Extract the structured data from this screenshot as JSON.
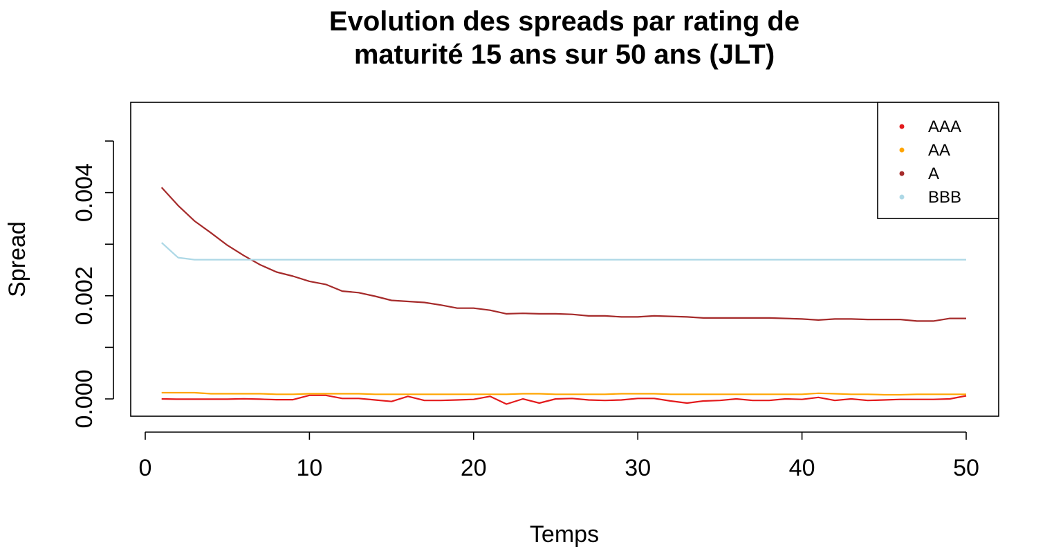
{
  "chart_data": {
    "type": "line",
    "title": "Evolution des spreads par rating de",
    "subtitle": "maturité 15 ans sur 50 ans (JLT)",
    "xlabel": "Temps",
    "ylabel": "Spread",
    "xlim": [
      0,
      50
    ],
    "ylim": [
      0,
      0.005
    ],
    "x_ticks": [
      0,
      10,
      20,
      30,
      40,
      50
    ],
    "x_tick_labels": [
      "0",
      "10",
      "20",
      "30",
      "40",
      "50"
    ],
    "y_ticks": [
      0,
      0.001,
      0.002,
      0.003,
      0.004,
      0.005
    ],
    "y_tick_labels": [
      "0.000",
      "",
      "0.002",
      "",
      "0.004",
      ""
    ],
    "grid": false,
    "legend_position": "top-right",
    "x": [
      1,
      2,
      3,
      4,
      5,
      6,
      7,
      8,
      9,
      10,
      11,
      12,
      13,
      14,
      15,
      16,
      17,
      18,
      19,
      20,
      21,
      22,
      23,
      24,
      25,
      26,
      27,
      28,
      29,
      30,
      31,
      32,
      33,
      34,
      35,
      36,
      37,
      38,
      39,
      40,
      41,
      42,
      43,
      44,
      45,
      46,
      47,
      48,
      49,
      50
    ],
    "series": [
      {
        "name": "AAA",
        "color": "#e31a1c",
        "values": [
          0.0,
          -5e-06,
          -5e-06,
          -5e-06,
          -5e-06,
          3e-06,
          -5e-06,
          -1.5e-05,
          -1.5e-05,
          7e-05,
          7e-05,
          1e-05,
          1e-05,
          -2e-05,
          -5e-05,
          5e-05,
          -3e-05,
          -3e-05,
          -2e-05,
          -1e-05,
          5e-05,
          -0.0001,
          0.0,
          -8e-05,
          0.0,
          1e-05,
          -2e-05,
          -3e-05,
          -2e-05,
          1e-05,
          1e-05,
          -4e-05,
          -8e-05,
          -4e-05,
          -3e-05,
          0.0,
          -3e-05,
          -3e-05,
          0.0,
          -1e-05,
          3e-05,
          -3e-05,
          0.0,
          -3e-05,
          -2e-05,
          -1e-05,
          -1e-05,
          -1e-05,
          0.0,
          6e-05
        ]
      },
      {
        "name": "AA",
        "color": "#ffa500",
        "values": [
          0.00012,
          0.00012,
          0.00012,
          0.0001,
          0.0001,
          0.0001,
          0.0001,
          9e-05,
          9e-05,
          0.0001,
          0.0001,
          0.0001,
          0.0001,
          9e-05,
          9e-05,
          9e-05,
          9e-05,
          9e-05,
          9e-05,
          9e-05,
          9e-05,
          9e-05,
          0.0001,
          0.0001,
          9e-05,
          9e-05,
          9e-05,
          9e-05,
          0.0001,
          0.0001,
          0.0001,
          9e-05,
          9e-05,
          9e-05,
          9e-05,
          9e-05,
          9e-05,
          9e-05,
          9e-05,
          9e-05,
          0.00011,
          0.0001,
          9e-05,
          9e-05,
          8e-05,
          8e-05,
          9e-05,
          9e-05,
          9e-05,
          9e-05
        ]
      },
      {
        "name": "A",
        "color": "#a52a2a",
        "values": [
          0.0041,
          0.00375,
          0.00345,
          0.00322,
          0.00298,
          0.00278,
          0.0026,
          0.00246,
          0.00238,
          0.00228,
          0.00222,
          0.00209,
          0.00206,
          0.00199,
          0.00191,
          0.00189,
          0.00187,
          0.00182,
          0.00176,
          0.00176,
          0.00172,
          0.00165,
          0.00166,
          0.00165,
          0.00165,
          0.00164,
          0.00161,
          0.00161,
          0.00159,
          0.00159,
          0.00161,
          0.0016,
          0.00159,
          0.00157,
          0.00157,
          0.00157,
          0.00157,
          0.00157,
          0.00156,
          0.00155,
          0.00153,
          0.00155,
          0.00155,
          0.00154,
          0.00154,
          0.00154,
          0.00151,
          0.00151,
          0.00156,
          0.00156
        ]
      },
      {
        "name": "BBB",
        "color": "#add8e6",
        "values": [
          0.00303,
          0.00274,
          0.0027,
          0.0027,
          0.0027,
          0.0027,
          0.0027,
          0.0027,
          0.0027,
          0.0027,
          0.0027,
          0.0027,
          0.0027,
          0.0027,
          0.0027,
          0.0027,
          0.0027,
          0.0027,
          0.0027,
          0.0027,
          0.0027,
          0.0027,
          0.0027,
          0.0027,
          0.0027,
          0.0027,
          0.0027,
          0.0027,
          0.0027,
          0.0027,
          0.0027,
          0.0027,
          0.0027,
          0.0027,
          0.0027,
          0.0027,
          0.0027,
          0.0027,
          0.0027,
          0.0027,
          0.0027,
          0.0027,
          0.0027,
          0.0027,
          0.0027,
          0.0027,
          0.0027,
          0.0027,
          0.0027,
          0.0027
        ]
      }
    ]
  }
}
